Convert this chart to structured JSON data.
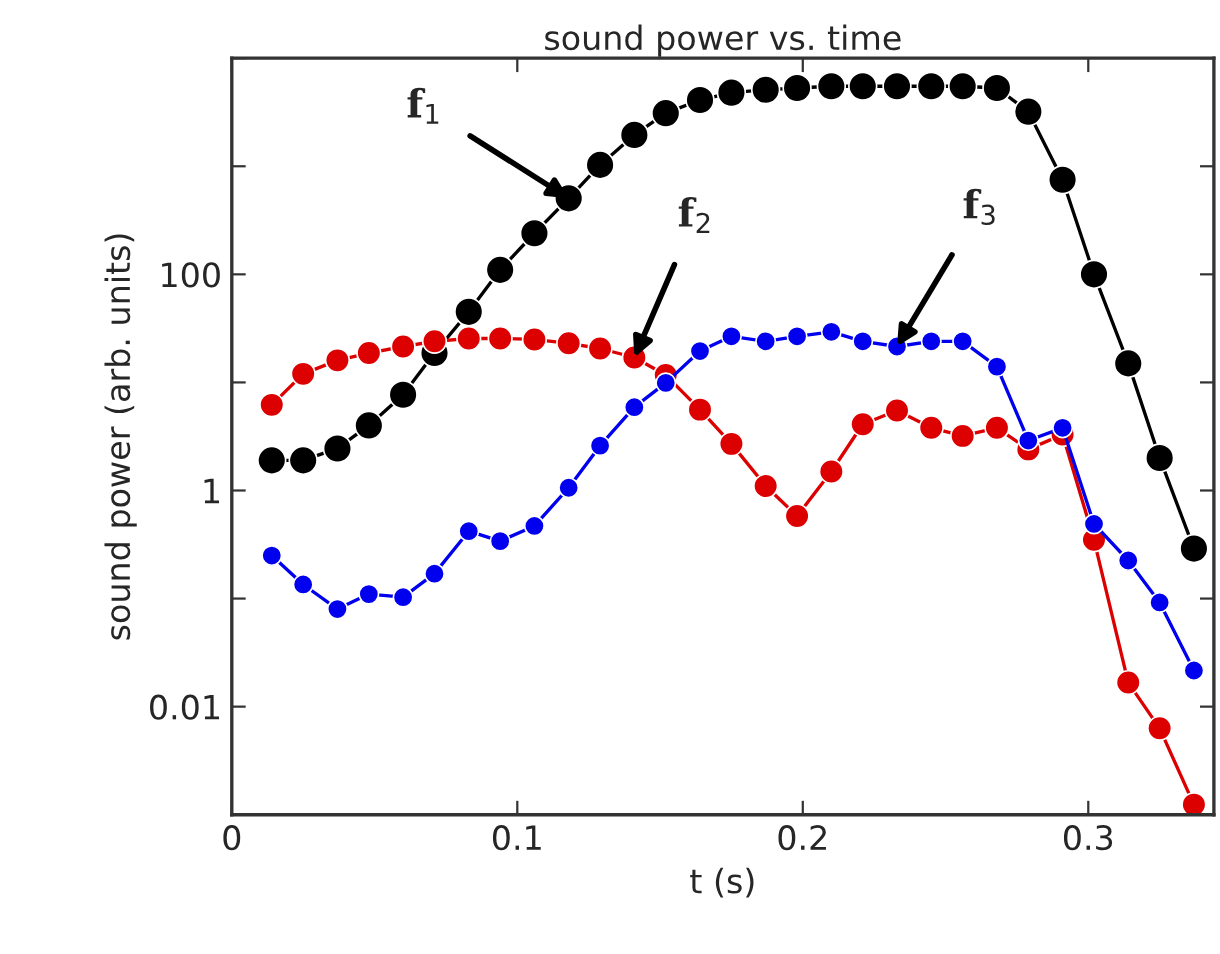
{
  "chart_data": {
    "type": "line",
    "title": "sound power vs. time",
    "xlabel": "t (s)",
    "ylabel": "sound power (arb. units)",
    "x": [
      0.014,
      0.025,
      0.037,
      0.048,
      0.06,
      0.071,
      0.083,
      0.094,
      0.106,
      0.118,
      0.129,
      0.141,
      0.152,
      0.164,
      0.175,
      0.187,
      0.198,
      0.21,
      0.221,
      0.233,
      0.245,
      0.256,
      0.268,
      0.279,
      0.291,
      0.302,
      0.314,
      0.325,
      0.337
    ],
    "series": [
      {
        "color": "#000000",
        "values": [
          1.9,
          1.9,
          2.45,
          4.0,
          7.7,
          18.7,
          45,
          110,
          240,
          505,
          1030,
          1950,
          3100,
          4100,
          4800,
          5100,
          5300,
          5500,
          5500,
          5500,
          5500,
          5500,
          5300,
          3200,
          750,
          100,
          15,
          2.0,
          0.29
        ]
      },
      {
        "color": "#dd0000",
        "values": [
          6.2,
          12,
          16,
          18.7,
          21.5,
          24,
          25.5,
          25.5,
          25,
          23,
          20.6,
          17,
          11.7,
          5.6,
          2.7,
          1.1,
          0.58,
          1.5,
          4.1,
          5.5,
          3.8,
          3.2,
          3.8,
          2.4,
          3.3,
          0.35,
          0.0167,
          0.0063,
          0.00124
        ]
      },
      {
        "color": "#0000ee",
        "values": [
          0.25,
          0.135,
          0.08,
          0.11,
          0.103,
          0.17,
          0.42,
          0.34,
          0.47,
          1.06,
          2.6,
          5.9,
          9.9,
          19.5,
          26.7,
          24,
          26.7,
          29.4,
          24,
          21.5,
          24,
          24,
          14,
          2.9,
          3.8,
          0.49,
          0.225,
          0.092,
          0.0216
        ]
      }
    ],
    "annotations": [
      {
        "text": "f$_{1}$",
        "x": 0.118,
        "y": 505
      },
      {
        "text": "f$_{2}$",
        "x": 0.141,
        "y": 17
      },
      {
        "text": "f$_{3}$",
        "x": 0.233,
        "y": 21.5
      }
    ],
    "log": "y",
    "xlim": [
      0,
      0.344
    ],
    "ylim": [
      0.001,
      10000
    ],
    "xticks": [
      0,
      0.1,
      0.2,
      0.3
    ],
    "yticks": [
      {
        "value": 0.001,
        "label": null
      },
      0.01,
      {
        "value": 0.1,
        "label": null
      },
      1,
      {
        "value": 10,
        "label": null
      },
      100,
      {
        "value": 1000,
        "label": null
      },
      {
        "value": 10000,
        "label": null
      }
    ],
    "marker": "circle",
    "line_style": "solid",
    "grid": false,
    "legend": false
  }
}
